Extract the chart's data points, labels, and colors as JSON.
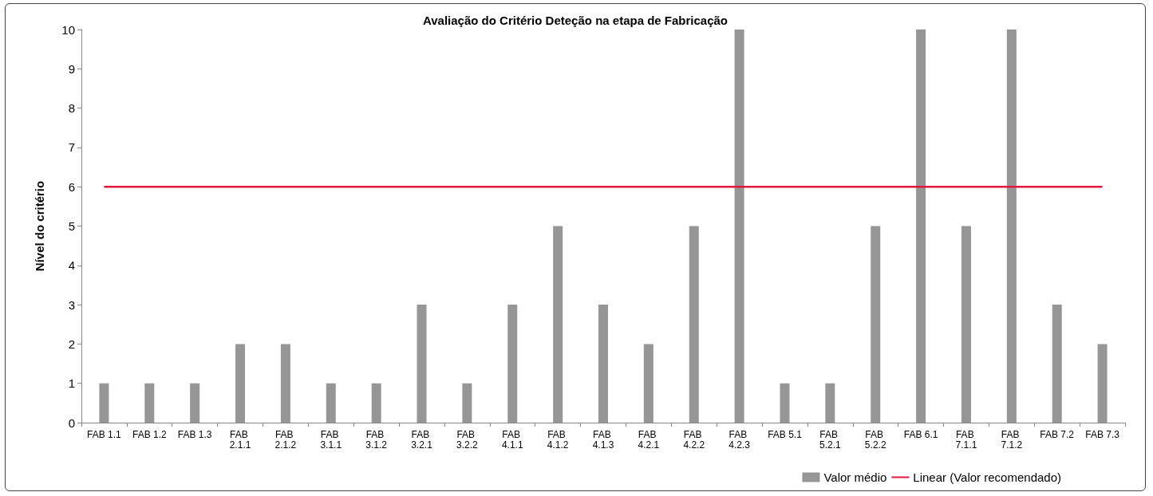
{
  "chart_data": {
    "type": "bar",
    "title": "Avaliação do Critério Deteção na etapa de Fabricação",
    "ylabel": "Nível do critério",
    "categories": [
      "FAB 1.1",
      "FAB 1.2",
      "FAB 1.3",
      "FAB 2.1.1",
      "FAB 2.1.2",
      "FAB 3.1.1",
      "FAB 3.1.2",
      "FAB 3.2.1",
      "FAB 3.2.2",
      "FAB 4.1.1",
      "FAB 4.1.2",
      "FAB 4.1.3",
      "FAB 4.2.1",
      "FAB 4.2.2",
      "FAB 4.2.3",
      "FAB 5.1",
      "FAB 5.2.1",
      "FAB 5.2.2",
      "FAB 6.1",
      "FAB 7.1.1",
      "FAB 7.1.2",
      "FAB 7.2",
      "FAB 7.3"
    ],
    "series": [
      {
        "name": "Valor médio",
        "color": "#969696",
        "values": [
          1,
          1,
          1,
          2,
          2,
          1,
          1,
          3,
          1,
          3,
          5,
          3,
          2,
          5,
          10,
          1,
          1,
          5,
          10,
          5,
          10,
          3,
          2
        ]
      },
      {
        "name": "Linear (Valor recomendado)",
        "type": "line",
        "color": "#e3173e",
        "marker": "none",
        "line_style": "solid",
        "values": [
          6,
          6,
          6,
          6,
          6,
          6,
          6,
          6,
          6,
          6,
          6,
          6,
          6,
          6,
          6,
          6,
          6,
          6,
          6,
          6,
          6,
          6,
          6
        ]
      }
    ],
    "ylim": [
      0,
      10
    ],
    "yticks": [
      0,
      1,
      2,
      3,
      4,
      5,
      6,
      7,
      8,
      9,
      10
    ],
    "grid": false,
    "legend": "bottom right"
  }
}
